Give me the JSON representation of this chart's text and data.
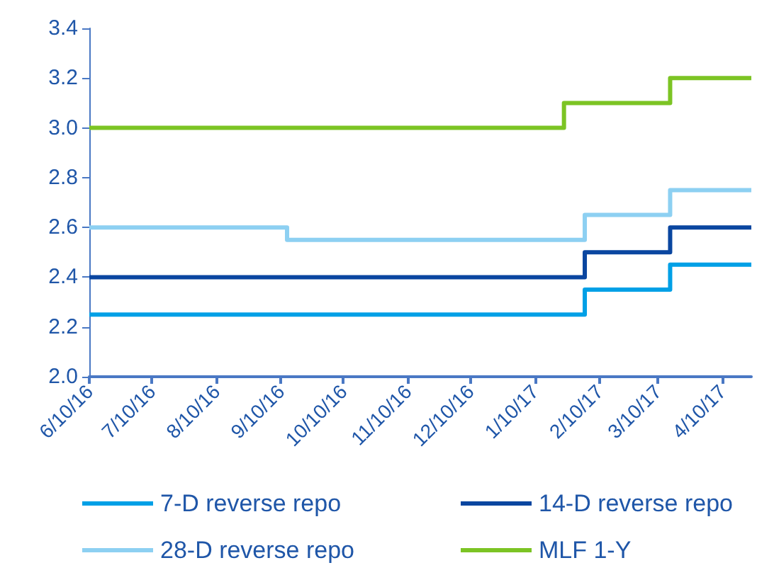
{
  "chart_data": {
    "type": "step",
    "xlim": [
      "2016-06-10",
      "2017-04-24"
    ],
    "xticks": [
      {
        "value": "2016-06-10",
        "label": "6/10/16"
      },
      {
        "value": "2016-07-10",
        "label": "7/10/16"
      },
      {
        "value": "2016-08-10",
        "label": "8/10/16"
      },
      {
        "value": "2016-09-10",
        "label": "9/10/16"
      },
      {
        "value": "2016-10-10",
        "label": "10/10/16"
      },
      {
        "value": "2016-11-10",
        "label": "11/10/16"
      },
      {
        "value": "2016-12-10",
        "label": "12/10/16"
      },
      {
        "value": "2017-01-10",
        "label": "1/10/17"
      },
      {
        "value": "2017-02-10",
        "label": "2/10/17"
      },
      {
        "value": "2017-03-10",
        "label": "3/10/17"
      },
      {
        "value": "2017-04-10",
        "label": "4/10/17"
      }
    ],
    "ylim": [
      2.0,
      3.4
    ],
    "yticks": [
      {
        "value": 2,
        "label": "2.0"
      },
      2.2,
      2.4,
      2.6,
      2.8,
      {
        "value": 3,
        "label": "3.0"
      },
      3.2,
      3.4
    ],
    "grid": false,
    "legend": "bottom",
    "line_style": "solid",
    "marker": "none",
    "series": [
      {
        "name": "7-D reverse repo",
        "color": "#00a0e6",
        "x": [
          "2016-06-10",
          "2017-02-03",
          "2017-03-16",
          "2017-04-24"
        ],
        "values": [
          2.25,
          2.35,
          2.45,
          2.45
        ]
      },
      {
        "name": "14-D reverse repo",
        "color": "#0a46a0",
        "x": [
          "2016-06-10",
          "2017-02-03",
          "2017-03-16",
          "2017-04-24"
        ],
        "values": [
          2.4,
          2.5,
          2.6,
          2.6
        ]
      },
      {
        "name": "28-D reverse repo",
        "color": "#8dd0f2",
        "x": [
          "2016-06-10",
          "2016-09-13",
          "2017-02-03",
          "2017-03-16",
          "2017-04-24"
        ],
        "values": [
          2.6,
          2.55,
          2.65,
          2.75,
          2.75
        ]
      },
      {
        "name": "MLF 1-Y",
        "color": "#7cc424",
        "x": [
          "2016-06-10",
          "2017-01-24",
          "2017-03-16",
          "2017-04-24"
        ],
        "values": [
          3.0,
          3.1,
          3.2,
          3.2
        ]
      }
    ]
  }
}
